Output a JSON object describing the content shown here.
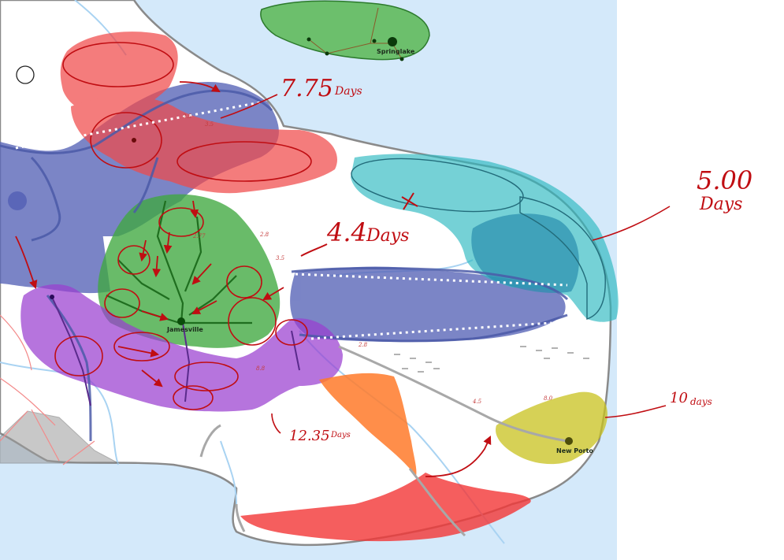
{
  "map": {
    "cities": [
      {
        "name": "Springlake"
      },
      {
        "name": "Jamesville"
      },
      {
        "name": "New Porto"
      }
    ],
    "annotations": [
      {
        "text_main": "7.75",
        "text_unit": "Days"
      },
      {
        "text_main": "5.00",
        "text_unit": "Days"
      },
      {
        "text_main": "4.4",
        "text_unit": "Days"
      },
      {
        "text_main": "12.35",
        "text_unit": "Days"
      },
      {
        "text_main": "10",
        "text_unit": "days"
      }
    ],
    "colors": {
      "water": "#d4e9fa",
      "land": "#ffffff",
      "coast": "#8a8a8a",
      "district_blue": "#5a66b8",
      "district_red": "#f04a4a",
      "district_green": "#3fa83f",
      "district_purple": "#9a3fd0",
      "district_teal": "#2bb8c0",
      "district_yellow": "#c8c21e",
      "district_orange": "#ff7a2a",
      "district_gray": "#9c9c9c",
      "ink": "#c00d12"
    }
  }
}
